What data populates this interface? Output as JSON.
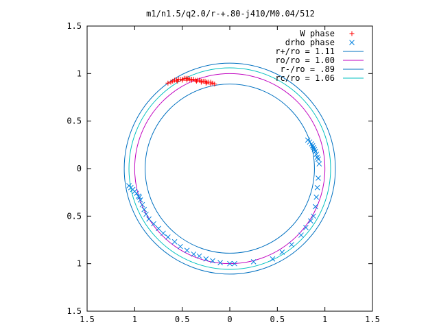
{
  "chart_data": {
    "type": "scatter",
    "title": "m1/n1.5/q2.0/r-+.80-j410/M0.04/512",
    "xlabel": "",
    "ylabel": "",
    "xlim": [
      -1.5,
      1.5
    ],
    "ylim": [
      -1.5,
      1.5
    ],
    "x_tick_values": [
      -1.5,
      -1,
      -0.5,
      0,
      0.5,
      1,
      1.5
    ],
    "x_tick_labels": [
      "1.5",
      "1",
      "0.5",
      "0",
      "0.5",
      "1",
      "1.5"
    ],
    "y_tick_values": [
      1.5,
      1,
      0.5,
      0,
      -0.5,
      -1,
      -1.5
    ],
    "y_tick_labels": [
      "1.5",
      "1",
      "0.5",
      "0",
      "0.5",
      "1",
      "1.5"
    ],
    "grid": false,
    "legend_position": "top-right",
    "scatter_series": [
      {
        "name": "W phase",
        "marker": "plus",
        "color": "#ff0000",
        "x": [
          -0.65,
          -0.62,
          -0.6,
          -0.58,
          -0.56,
          -0.54,
          -0.52,
          -0.5,
          -0.48,
          -0.46,
          -0.44,
          -0.42,
          -0.4,
          -0.38,
          -0.36,
          -0.34,
          -0.32,
          -0.3,
          -0.28,
          -0.26,
          -0.24,
          -0.22,
          -0.2,
          -0.18,
          -0.16,
          -0.55,
          -0.5,
          -0.45,
          -0.4,
          -0.35,
          -0.3,
          -0.25,
          -0.2
        ],
        "y": [
          0.9,
          0.91,
          0.92,
          0.93,
          0.93,
          0.94,
          0.94,
          0.94,
          0.95,
          0.95,
          0.95,
          0.94,
          0.94,
          0.94,
          0.93,
          0.93,
          0.93,
          0.92,
          0.92,
          0.92,
          0.91,
          0.91,
          0.91,
          0.9,
          0.89,
          0.92,
          0.93,
          0.93,
          0.93,
          0.92,
          0.91,
          0.9,
          0.89
        ]
      },
      {
        "name": "drho phase",
        "marker": "cross",
        "color": "#0080e0",
        "x": [
          0.82,
          0.84,
          0.86,
          0.87,
          0.88,
          0.89,
          0.9,
          0.91,
          0.92,
          0.93,
          0.94,
          0.93,
          0.92,
          0.91,
          0.9,
          0.88,
          0.85,
          0.8,
          0.75,
          0.65,
          0.55,
          0.45,
          0.25,
          0.05,
          0,
          -0.1,
          -0.18,
          -0.25,
          -0.32,
          -0.38,
          -0.45,
          -0.52,
          -0.58,
          -0.65,
          -0.7,
          -0.75,
          -0.8,
          -0.85,
          -0.88,
          -0.9,
          -0.92,
          -0.94,
          -0.96,
          -0.98,
          -1.0,
          -1.02,
          -1.04,
          -1.06,
          -0.95
        ],
        "y": [
          0.3,
          0.28,
          0.26,
          0.24,
          0.22,
          0.2,
          0.18,
          0.15,
          0.12,
          0.1,
          0.05,
          -0.1,
          -0.2,
          -0.3,
          -0.4,
          -0.5,
          -0.55,
          -0.62,
          -0.7,
          -0.8,
          -0.88,
          -0.95,
          -0.98,
          -1.0,
          -1.0,
          -0.99,
          -0.97,
          -0.95,
          -0.92,
          -0.9,
          -0.86,
          -0.82,
          -0.77,
          -0.72,
          -0.68,
          -0.63,
          -0.58,
          -0.53,
          -0.48,
          -0.43,
          -0.38,
          -0.33,
          -0.29,
          -0.26,
          -0.24,
          -0.22,
          -0.2,
          -0.18,
          -0.3
        ]
      }
    ],
    "circle_series": [
      {
        "name": "r+/ro = 1.11",
        "radius": 1.11,
        "color": "#0070c0"
      },
      {
        "name": "ro/ro = 1.00",
        "radius": 1.0,
        "color": "#c000c0"
      },
      {
        "name": "r-/ro = .89",
        "radius": 0.89,
        "color": "#0070c0"
      },
      {
        "name": "rc/ro = 1.06",
        "radius": 1.06,
        "color": "#00c0c0"
      }
    ]
  }
}
